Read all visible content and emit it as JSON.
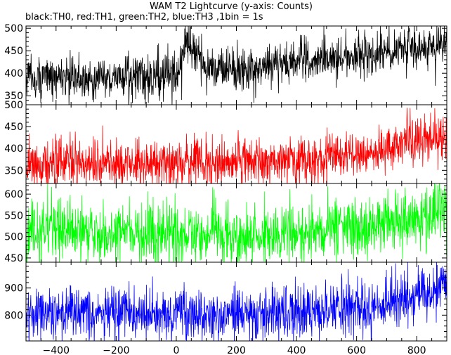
{
  "chart_data": {
    "type": "line",
    "title": "WAM T2 Lightcurve (y-axis: Counts)",
    "subtitle": "black:TH0, red:TH1, green:TH2, blue:TH3 ,1bin = 1s",
    "xlim": [
      -500,
      900
    ],
    "xticks": [
      -400,
      -200,
      0,
      200,
      400,
      600,
      800
    ],
    "panels": [
      {
        "name": "TH0",
        "color": "#000000",
        "ylim": [
          330,
          505
        ],
        "yticks": [
          350,
          400,
          450,
          500
        ],
        "amplitude": 24,
        "x": [
          -500,
          -400,
          -300,
          -200,
          -100,
          -20,
          10,
          30,
          50,
          100,
          200,
          300,
          400,
          500,
          600,
          700,
          800,
          900
        ],
        "y": [
          392,
          390,
          388,
          391,
          393,
          397,
          405,
          468,
          452,
          412,
          410,
          417,
          424,
          430,
          438,
          448,
          456,
          462
        ]
      },
      {
        "name": "TH1",
        "color": "#ff0000",
        "ylim": [
          320,
          500
        ],
        "yticks": [
          350,
          400,
          450,
          500
        ],
        "amplitude": 28,
        "x": [
          -500,
          -400,
          -300,
          -200,
          -100,
          0,
          100,
          200,
          300,
          400,
          500,
          600,
          700,
          800,
          900
        ],
        "y": [
          368,
          366,
          365,
          365,
          366,
          367,
          368,
          369,
          371,
          374,
          378,
          385,
          400,
          418,
          430
        ]
      },
      {
        "name": "TH2",
        "color": "#00ff00",
        "ylim": [
          440,
          625
        ],
        "yticks": [
          450,
          500,
          550,
          600
        ],
        "amplitude": 35,
        "x": [
          -500,
          -400,
          -300,
          -200,
          -100,
          0,
          100,
          200,
          300,
          400,
          500,
          600,
          700,
          800,
          900
        ],
        "y": [
          518,
          514,
          511,
          509,
          507,
          506,
          506,
          507,
          508,
          510,
          514,
          520,
          530,
          545,
          558
        ]
      },
      {
        "name": "TH3",
        "color": "#0000ff",
        "ylim": [
          705,
          995
        ],
        "yticks": [
          800,
          900
        ],
        "amplitude": 48,
        "x": [
          -500,
          -400,
          -300,
          -200,
          -100,
          0,
          100,
          200,
          300,
          400,
          500,
          600,
          700,
          800,
          900
        ],
        "y": [
          815,
          810,
          806,
          803,
          802,
          802,
          803,
          805,
          808,
          812,
          818,
          828,
          845,
          872,
          905
        ]
      }
    ]
  }
}
